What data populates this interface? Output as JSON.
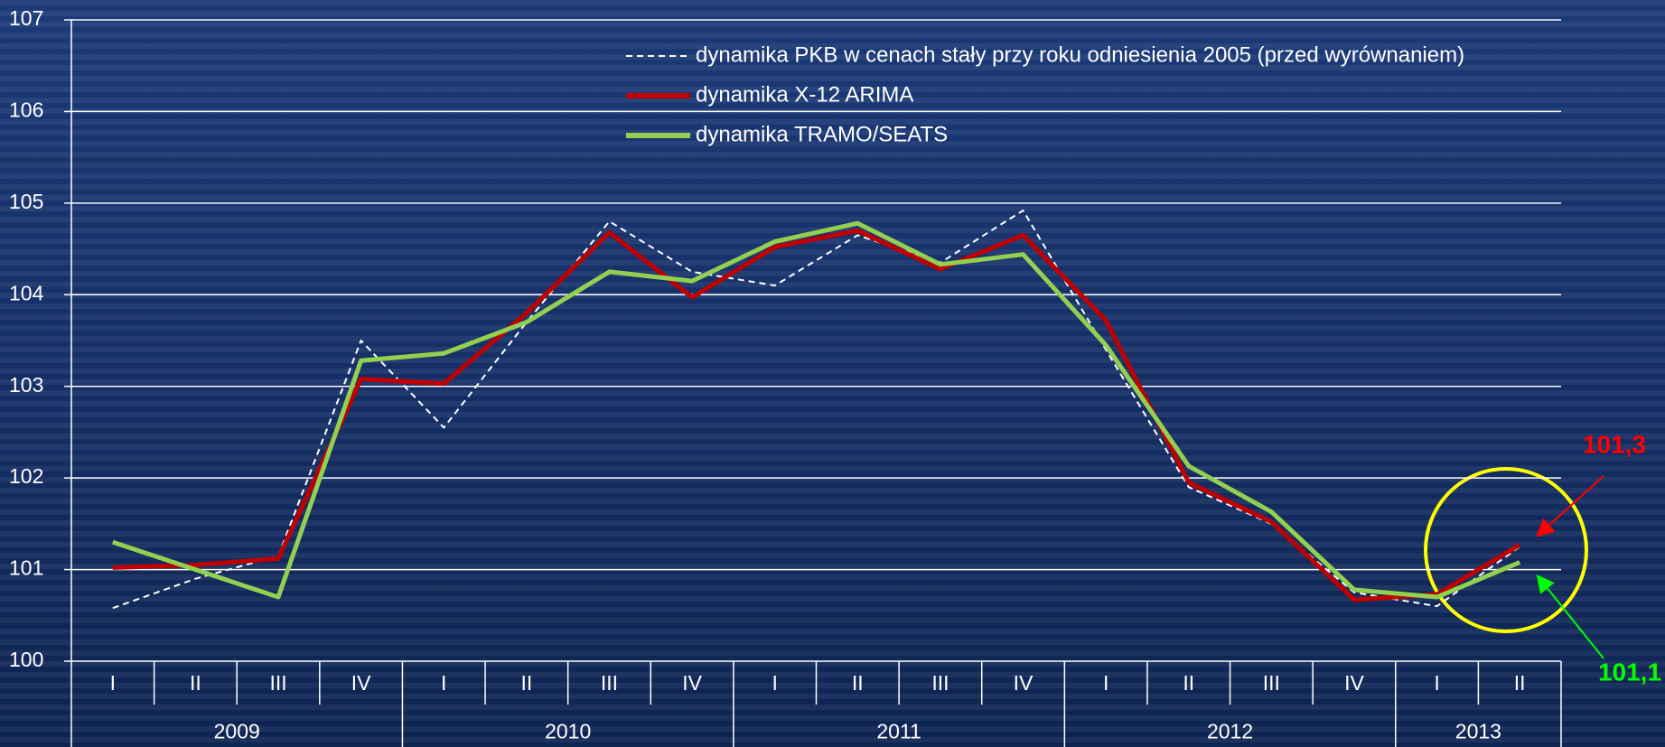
{
  "chart_data": {
    "type": "line",
    "categories": [
      "I",
      "II",
      "III",
      "IV",
      "I",
      "II",
      "III",
      "IV",
      "I",
      "II",
      "III",
      "IV",
      "I",
      "II",
      "III",
      "IV",
      "I",
      "II"
    ],
    "years": [
      "2009",
      "2010",
      "2011",
      "2012",
      "2013"
    ],
    "series": [
      {
        "name": "dynamika PKB w cenach stały przy roku odniesienia 2005 (przed wyrównaniem)",
        "color": "#ffffff",
        "line_style": "dashed",
        "values": [
          100.58,
          100.9,
          101.15,
          103.5,
          102.55,
          103.7,
          104.8,
          104.25,
          104.1,
          104.65,
          104.35,
          104.92,
          103.4,
          101.9,
          101.5,
          100.75,
          100.6,
          101.25
        ]
      },
      {
        "name": "dynamika X-12 ARIMA",
        "color": "#c00000",
        "line_style": "solid",
        "values": [
          101.02,
          101.05,
          101.12,
          103.08,
          103.03,
          103.8,
          104.68,
          103.97,
          104.52,
          104.7,
          104.28,
          104.65,
          103.72,
          101.95,
          101.52,
          100.67,
          100.73,
          101.27
        ]
      },
      {
        "name": "dynamika TRAMO/SEATS",
        "color": "#92d050",
        "line_style": "solid",
        "values": [
          101.3,
          101.0,
          100.7,
          103.28,
          103.36,
          103.7,
          104.25,
          104.15,
          104.58,
          104.78,
          104.33,
          104.44,
          103.45,
          102.13,
          101.63,
          100.78,
          100.7,
          101.08
        ]
      }
    ],
    "ylim": [
      100,
      107
    ],
    "yticks": [
      100,
      101,
      102,
      103,
      104,
      105,
      106,
      107
    ],
    "grid": true,
    "annotations": [
      {
        "text": "101,3",
        "color": "#ff0000"
      },
      {
        "text": "101,1",
        "color": "#00ff00"
      }
    ]
  }
}
